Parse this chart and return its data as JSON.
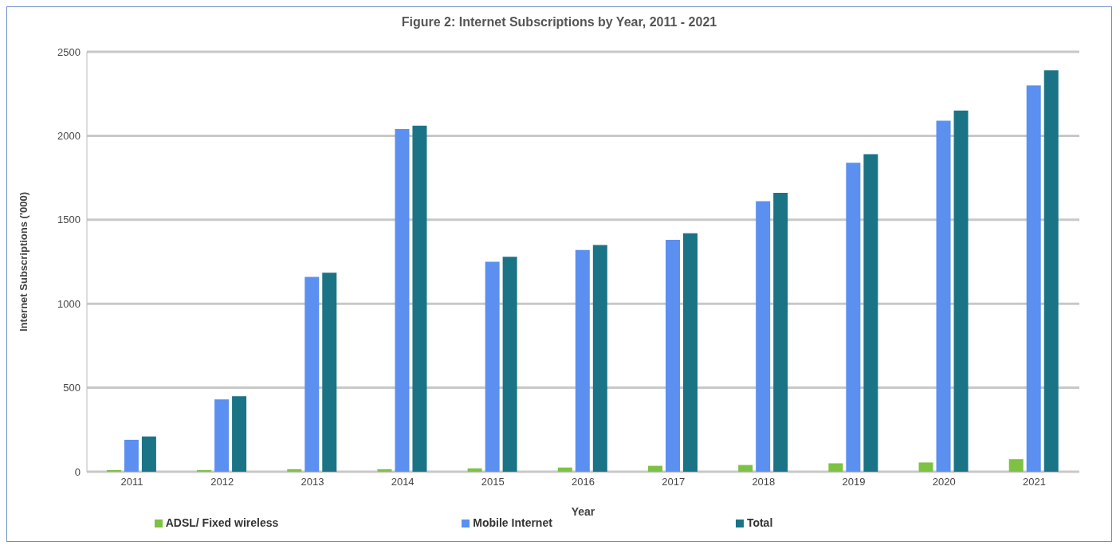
{
  "chart_data": {
    "type": "bar",
    "title": "Figure 2: Internet Subscriptions by Year, 2011 - 2021",
    "xlabel": "Year",
    "ylabel": "Internet Subscriptions ('000)",
    "categories": [
      "2011",
      "2012",
      "2013",
      "2014",
      "2015",
      "2016",
      "2017",
      "2018",
      "2019",
      "2020",
      "2021"
    ],
    "series": [
      {
        "name": "ADSL/ Fixed wireless",
        "color": "#7dc242",
        "values": [
          10,
          10,
          15,
          15,
          20,
          25,
          35,
          40,
          50,
          55,
          75
        ]
      },
      {
        "name": "Mobile Internet",
        "color": "#5b8ff0",
        "values": [
          190,
          430,
          1160,
          2040,
          1250,
          1320,
          1380,
          1610,
          1840,
          2090,
          2300
        ]
      },
      {
        "name": "Total",
        "color": "#1a7486",
        "values": [
          210,
          450,
          1185,
          2060,
          1280,
          1350,
          1420,
          1660,
          1890,
          2150,
          2390
        ]
      }
    ],
    "ylim": [
      0,
      2500
    ],
    "yticks": [
      0,
      500,
      1000,
      1500,
      2000,
      2500
    ],
    "grid": "y",
    "legend": "bottom"
  }
}
